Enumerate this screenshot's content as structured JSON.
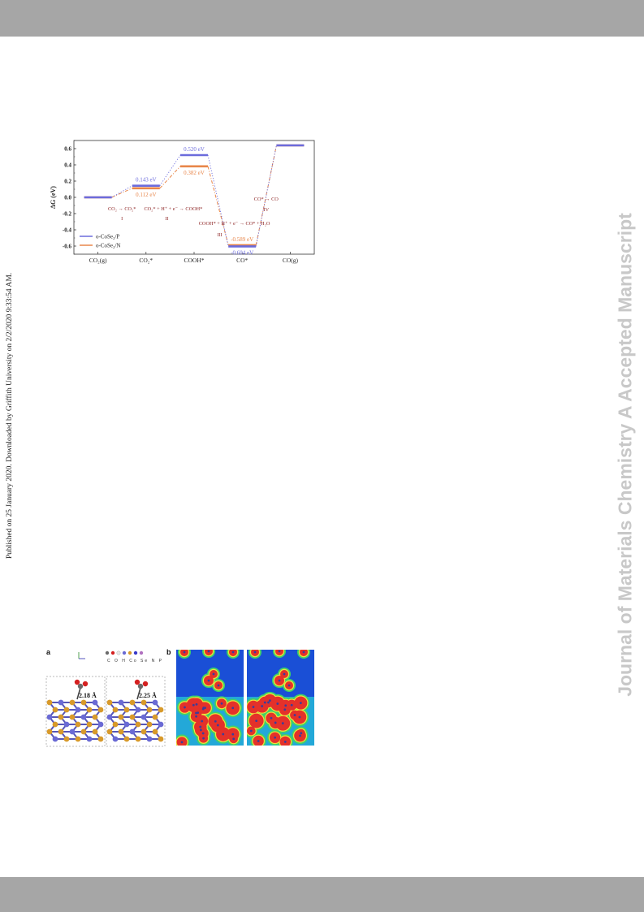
{
  "sidebar": {
    "published_note": "Published on 25 January 2020. Downloaded by Griffith University on 2/2/2020 9:33:54 AM.",
    "journal_watermark": "Journal of Materials Chemistry A Accepted Manuscript"
  },
  "chart_data": {
    "type": "line",
    "ylabel": "ΔG (eV)",
    "ylim": [
      -0.7,
      0.7
    ],
    "yticks": [
      "0.6",
      "0.4",
      "0.2",
      "0.0",
      "-0.2",
      "-0.4",
      "-0.6"
    ],
    "categories": [
      "CO₂(g)",
      "CO₂*",
      "COOH*",
      "CO*",
      "CO(g)"
    ],
    "series": [
      {
        "name": "o-CoSe₂/P",
        "color": "#6b6bdc",
        "values": [
          0.0,
          0.143,
          0.52,
          -0.604,
          0.64
        ]
      },
      {
        "name": "o-CoSe₂/N",
        "color": "#e8864a",
        "values": [
          0.0,
          0.112,
          0.382,
          -0.589,
          0.64
        ]
      }
    ],
    "value_labels": {
      "p_co2": "0.143 eV",
      "n_co2": "0.112 eV",
      "p_cooh": "0.520 eV",
      "n_cooh": "0.382 eV",
      "n_co": "-0.589 eV",
      "p_co": "-0.604 eV"
    },
    "step_annotations": {
      "step1_eq": "CO₂ → CO₂*",
      "step1_num": "I",
      "step2_eq": "CO₂* + H⁺ + e⁻ → COOH*",
      "step2_num": "II",
      "step3_eq": "COOH* + H⁺ + e⁻ → CO* + H₂O",
      "step3_num": "III",
      "step4_eq": "CO* → CO",
      "step4_num": "IV"
    }
  },
  "structure_figure": {
    "panel_a": "a",
    "panel_b": "b",
    "element_key": "C O H Co Se N P",
    "bond_lengths": [
      "2.18 Å",
      "2.25 Å"
    ]
  }
}
